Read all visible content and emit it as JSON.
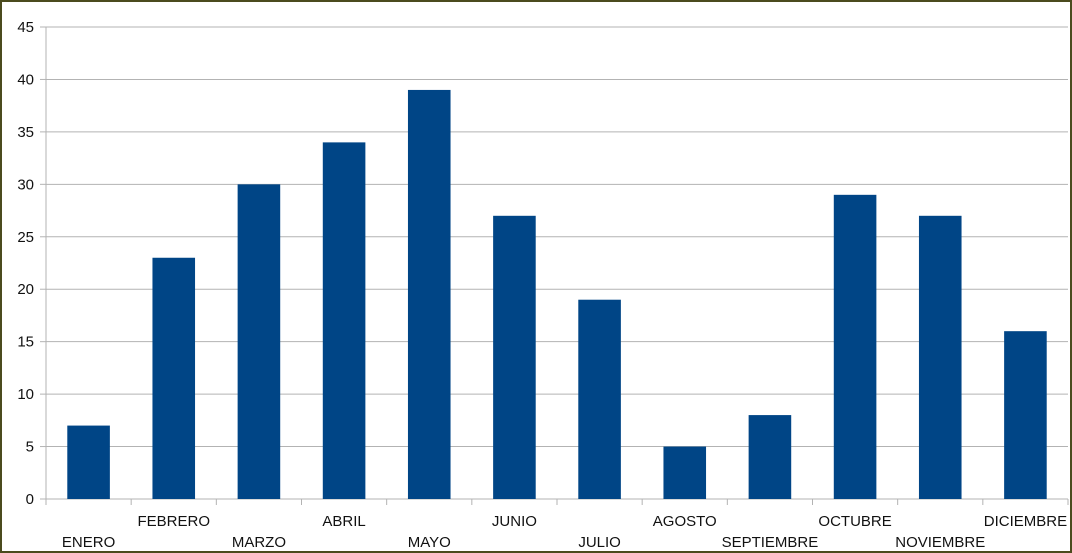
{
  "chart_data": {
    "type": "bar",
    "title": "",
    "xlabel": "",
    "ylabel": "",
    "categories": [
      "ENERO",
      "FEBRERO",
      "MARZO",
      "ABRIL",
      "MAYO",
      "JUNIO",
      "JULIO",
      "AGOSTO",
      "SEPTIEMBRE",
      "OCTUBRE",
      "NOVIEMBRE",
      "DICIEMBRE"
    ],
    "values": [
      7,
      23,
      30,
      34,
      39,
      27,
      19,
      5,
      8,
      29,
      27,
      16
    ],
    "ylim": [
      0,
      45
    ],
    "yticks": [
      "0",
      "5",
      "10",
      "15",
      "20",
      "25",
      "30",
      "35",
      "40",
      "45"
    ],
    "grid": true,
    "legend": "none",
    "bar_color": "#004586",
    "grid_color": "#b3b3b3",
    "border_color": "#4b4b1e"
  }
}
